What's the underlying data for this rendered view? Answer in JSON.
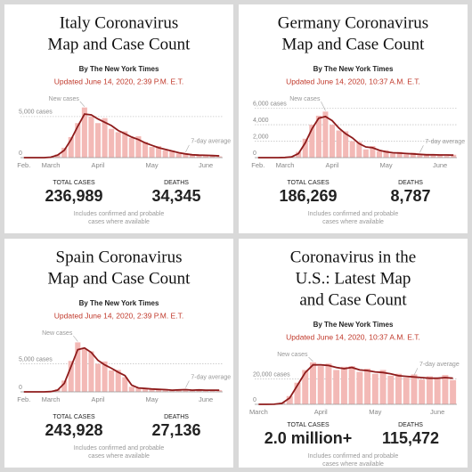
{
  "chart_data": [
    {
      "type": "bar",
      "title": [
        "Italy Coronavirus",
        "Map and Case Count"
      ],
      "byline": "By The New York Times",
      "updated": "Updated June 14, 2020, 2:39 P.M. E.T.",
      "categories": [
        "Feb.",
        null,
        null,
        null,
        "March",
        null,
        null,
        null,
        null,
        null,
        null,
        "April",
        null,
        null,
        null,
        null,
        null,
        null,
        null,
        "May",
        null,
        null,
        null,
        null,
        null,
        null,
        null,
        "June",
        null,
        null
      ],
      "series": [
        {
          "name": "New cases",
          "color": "#f3b9b6",
          "values": [
            0,
            0,
            0,
            0,
            80,
            400,
            1200,
            2500,
            4200,
            6100,
            5000,
            4200,
            4800,
            3500,
            3100,
            3200,
            2400,
            2600,
            1900,
            1300,
            1400,
            900,
            850,
            500,
            500,
            300,
            350,
            200,
            300,
            150
          ]
        },
        {
          "name": "7-day average",
          "color": "#8e1b1b",
          "values": [
            0,
            0,
            0,
            0,
            50,
            300,
            900,
            2200,
            3800,
            5300,
            5200,
            4700,
            4300,
            3900,
            3300,
            2900,
            2500,
            2200,
            1800,
            1500,
            1200,
            1000,
            800,
            600,
            450,
            350,
            300,
            280,
            250,
            220
          ]
        }
      ],
      "ylim": [
        0,
        6500
      ],
      "yticks": [
        0,
        {
          "value": 5000,
          "label": "5,000 cases"
        }
      ],
      "grid": true,
      "total_cases_label": "TOTAL CASES",
      "total_cases": "236,989",
      "deaths_label": "DEATHS",
      "deaths": "34,345",
      "note": [
        "Includes confirmed and probable",
        "cases where available"
      ]
    },
    {
      "type": "bar",
      "title": [
        "Germany Coronavirus",
        "Map and Case Count"
      ],
      "byline": "By The New York Times",
      "updated": "Updated June 14, 2020, 10:37 A.M. E.T.",
      "categories": [
        "Feb.",
        null,
        null,
        null,
        "March",
        null,
        null,
        null,
        null,
        null,
        null,
        "April",
        null,
        null,
        null,
        null,
        null,
        null,
        null,
        "May",
        null,
        null,
        null,
        null,
        null,
        null,
        null,
        "June",
        null,
        null
      ],
      "series": [
        {
          "name": "New cases",
          "color": "#f3b9b6",
          "values": [
            0,
            0,
            0,
            0,
            30,
            150,
            700,
            2300,
            4000,
            5100,
            5600,
            4000,
            3300,
            3200,
            2000,
            1900,
            1000,
            1400,
            800,
            900,
            500,
            700,
            400,
            600,
            300,
            450,
            250,
            400,
            200,
            350
          ]
        },
        {
          "name": "7-day average",
          "color": "#8e1b1b",
          "values": [
            0,
            0,
            0,
            0,
            20,
            100,
            500,
            1800,
            3500,
            4800,
            5000,
            4500,
            3600,
            2900,
            2400,
            1700,
            1300,
            1200,
            900,
            700,
            600,
            550,
            500,
            450,
            400,
            350,
            350,
            330,
            320,
            300
          ]
        }
      ],
      "ylim": [
        0,
        6500
      ],
      "yticks": [
        0,
        {
          "value": 2000,
          "label": "2,000"
        },
        {
          "value": 4000,
          "label": "4,000"
        },
        {
          "value": 6000,
          "label": "6,000 cases"
        }
      ],
      "grid": true,
      "total_cases_label": "TOTAL CASES",
      "total_cases": "186,269",
      "deaths_label": "DEATHS",
      "deaths": "8,787",
      "note": [
        "Includes confirmed and probable",
        "cases where available"
      ]
    },
    {
      "type": "bar",
      "title": [
        "Spain Coronavirus",
        "Map and Case Count"
      ],
      "byline": "By The New York Times",
      "updated": "Updated June 14, 2020, 2:39 P.M. E.T.",
      "categories": [
        "Feb.",
        null,
        null,
        null,
        "March",
        null,
        null,
        null,
        null,
        null,
        null,
        "April",
        null,
        null,
        null,
        null,
        null,
        null,
        null,
        "May",
        null,
        null,
        null,
        null,
        null,
        null,
        null,
        "June",
        null,
        null
      ],
      "series": [
        {
          "name": "New cases",
          "color": "#f3b9b6",
          "values": [
            0,
            0,
            0,
            0,
            80,
            500,
            2000,
            5500,
            8800,
            7600,
            7200,
            5000,
            5400,
            3800,
            3900,
            2600,
            900,
            800,
            500,
            600,
            400,
            500,
            250,
            450,
            350,
            300,
            400,
            250,
            350,
            300
          ]
        },
        {
          "name": "7-day average",
          "color": "#8e1b1b",
          "values": [
            0,
            0,
            0,
            0,
            50,
            300,
            1500,
            4500,
            7500,
            7800,
            7000,
            5600,
            4800,
            4200,
            3500,
            2900,
            1200,
            700,
            600,
            500,
            450,
            400,
            300,
            350,
            400,
            300,
            350,
            300,
            300,
            300
          ]
        }
      ],
      "ylim": [
        0,
        9500
      ],
      "yticks": [
        0,
        {
          "value": 5000,
          "label": "5,000 cases"
        }
      ],
      "grid": true,
      "total_cases_label": "TOTAL CASES",
      "total_cases": "243,928",
      "deaths_label": "DEATHS",
      "deaths": "27,136",
      "note": [
        "Includes confirmed and probable",
        "cases where available"
      ]
    },
    {
      "type": "bar",
      "title": [
        "Coronavirus in the",
        "U.S.: Latest Map",
        "and Case Count"
      ],
      "byline": "By The New York Times",
      "updated": "Updated June 14, 2020, 10:37 A.M. E.T.",
      "categories": [
        "March",
        null,
        null,
        null,
        null,
        null,
        null,
        null,
        "April",
        null,
        null,
        null,
        null,
        null,
        null,
        "May",
        null,
        null,
        null,
        null,
        null,
        null,
        null,
        "June",
        null,
        null
      ],
      "series": [
        {
          "name": "New cases",
          "color": "#f3b9b6",
          "values": [
            0,
            20,
            150,
            1200,
            6500,
            17000,
            27000,
            33000,
            30000,
            32000,
            27000,
            29500,
            30000,
            25500,
            28000,
            24000,
            27000,
            22500,
            24000,
            21000,
            23500,
            19500,
            22000,
            20000,
            23000,
            19000
          ]
        },
        {
          "name": "7-day average",
          "color": "#8e1b1b",
          "values": [
            0,
            10,
            100,
            800,
            5000,
            15000,
            25000,
            31000,
            31000,
            30500,
            29000,
            28000,
            29000,
            27000,
            26500,
            25500,
            25000,
            24000,
            22500,
            22000,
            21500,
            21000,
            20500,
            20500,
            21000,
            20500
          ]
        }
      ],
      "ylim": [
        0,
        35000
      ],
      "yticks": [
        0,
        {
          "value": 20000,
          "label": "20,000 cases"
        }
      ],
      "grid": true,
      "total_cases_label": "TOTAL CASES",
      "total_cases": "2.0 million+",
      "deaths_label": "DEATHS",
      "deaths": "115,472",
      "note": [
        "Includes confirmed and probable",
        "cases where available"
      ]
    }
  ]
}
